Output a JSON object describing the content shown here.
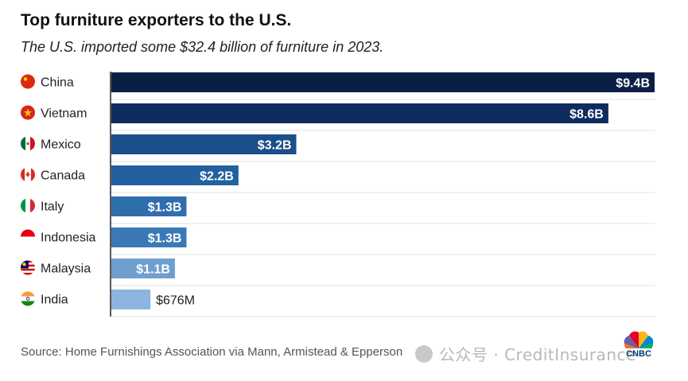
{
  "header": {
    "title": "Top furniture exporters to the U.S.",
    "subtitle": "The U.S. imported some $32.4 billion of furniture in 2023."
  },
  "footer": {
    "source": "Source: Home Furnishings Association via Mann, Armistead & Epperson",
    "watermark": "公众号 · CreditInsurance",
    "logo_text": "CNBC"
  },
  "chart_data": {
    "type": "bar",
    "orientation": "horizontal",
    "categories": [
      "China",
      "Vietnam",
      "Mexico",
      "Canada",
      "Italy",
      "Indonesia",
      "Malaysia",
      "India"
    ],
    "values": [
      9.4,
      8.6,
      3.2,
      2.2,
      1.3,
      1.3,
      1.1,
      0.676
    ],
    "value_labels": [
      "$9.4B",
      "$8.6B",
      "$3.2B",
      "$2.2B",
      "$1.3B",
      "$1.3B",
      "$1.1B",
      "$676M"
    ],
    "unit": "billion USD",
    "xlim": [
      0,
      9.4
    ],
    "bar_colors": [
      "#0b1f45",
      "#0e2d5e",
      "#1a4f8c",
      "#22609f",
      "#2f6ead",
      "#3a79b6",
      "#6f9fcf",
      "#8bb5dc"
    ],
    "flags": [
      "china-flag-icon",
      "vietnam-flag-icon",
      "mexico-flag-icon",
      "canada-flag-icon",
      "italy-flag-icon",
      "indonesia-flag-icon",
      "malaysia-flag-icon",
      "india-flag-icon"
    ],
    "grid": "horizontal separators",
    "legend": "none",
    "title": "Top furniture exporters to the U.S.",
    "subtitle": "The U.S. imported some $32.4 billion of furniture in 2023."
  }
}
